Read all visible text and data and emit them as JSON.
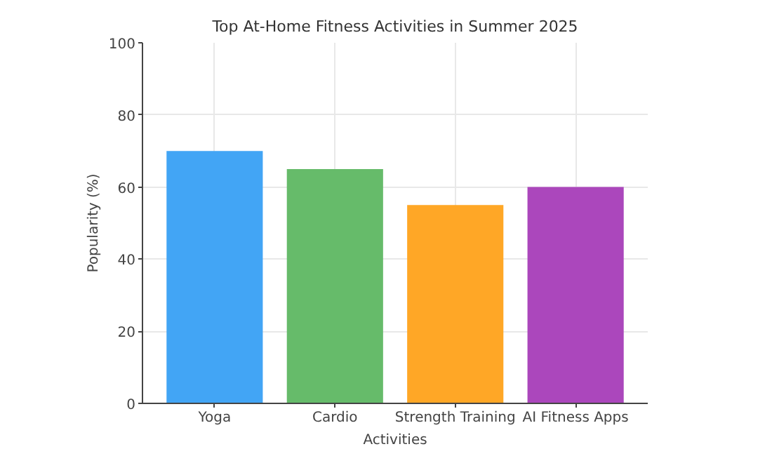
{
  "chart_data": {
    "type": "bar",
    "title": "Top At-Home Fitness Activities in Summer 2025",
    "xlabel": "Activities",
    "ylabel": "Popularity (%)",
    "categories": [
      "Yoga",
      "Cardio",
      "Strength Training",
      "AI Fitness Apps"
    ],
    "values": [
      70,
      65,
      55,
      60
    ],
    "colors": [
      "#42a5f5",
      "#66bb6a",
      "#ffa726",
      "#ab47bc"
    ],
    "ylim": [
      0,
      100
    ],
    "yticks": [
      0,
      20,
      40,
      60,
      80,
      100
    ],
    "grid": true
  }
}
